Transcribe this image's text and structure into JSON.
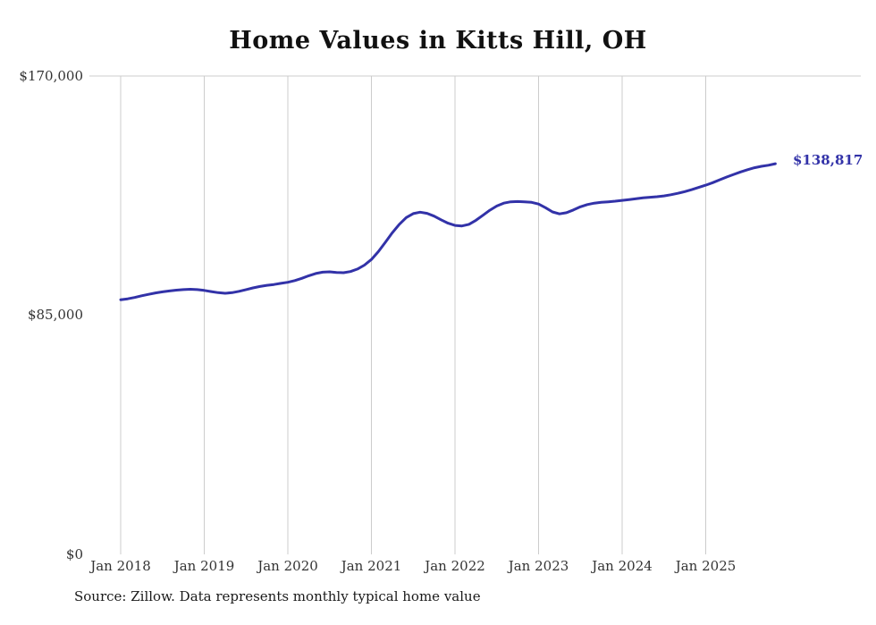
{
  "title": "Home Values in Kitts Hill, OH",
  "source_note": "Source: Zillow. Data represents monthly typical home value",
  "end_label": "$138,817",
  "colors": {
    "line": "#3232a8",
    "grid": "#cccccc",
    "text": "#333333",
    "background": "#ffffff"
  },
  "chart_data": {
    "type": "line",
    "title": "Home Values in Kitts Hill, OH",
    "xlabel": "",
    "ylabel": "",
    "ylim": [
      0,
      170000
    ],
    "grid": "vertical",
    "legend_position": "none",
    "y_ticks": [
      "$0",
      "$85,000",
      "$170,000"
    ],
    "y_tick_values": [
      0,
      85000,
      170000
    ],
    "x_ticks": [
      "Jan 2018",
      "Jan 2019",
      "Jan 2020",
      "Jan 2021",
      "Jan 2022",
      "Jan 2023",
      "Jan 2024",
      "Jan 2025"
    ],
    "x_start_month": "2018-01",
    "x_end_month": "2025-11",
    "last_value": 138817,
    "last_value_label": "$138,817",
    "series": [
      {
        "name": "Typical home value",
        "values": [
          90500,
          90800,
          91300,
          91900,
          92400,
          92900,
          93300,
          93600,
          93900,
          94100,
          94200,
          94100,
          93800,
          93400,
          93000,
          92800,
          93000,
          93500,
          94100,
          94700,
          95200,
          95600,
          95900,
          96300,
          96700,
          97300,
          98100,
          99000,
          99800,
          100300,
          100400,
          100200,
          100100,
          100500,
          101400,
          102800,
          104800,
          107600,
          110900,
          114300,
          117300,
          119700,
          121100,
          121600,
          121200,
          120200,
          118900,
          117700,
          116900,
          116700,
          117300,
          118700,
          120500,
          122300,
          123800,
          124800,
          125300,
          125400,
          125300,
          125100,
          124500,
          123200,
          121700,
          121000,
          121400,
          122400,
          123500,
          124300,
          124800,
          125100,
          125300,
          125500,
          125800,
          126100,
          126400,
          126700,
          126900,
          127100,
          127400,
          127800,
          128300,
          128900,
          129600,
          130400,
          131200,
          132100,
          133100,
          134100,
          135000,
          135900,
          136700,
          137400,
          137900,
          138300,
          138817
        ]
      }
    ]
  }
}
